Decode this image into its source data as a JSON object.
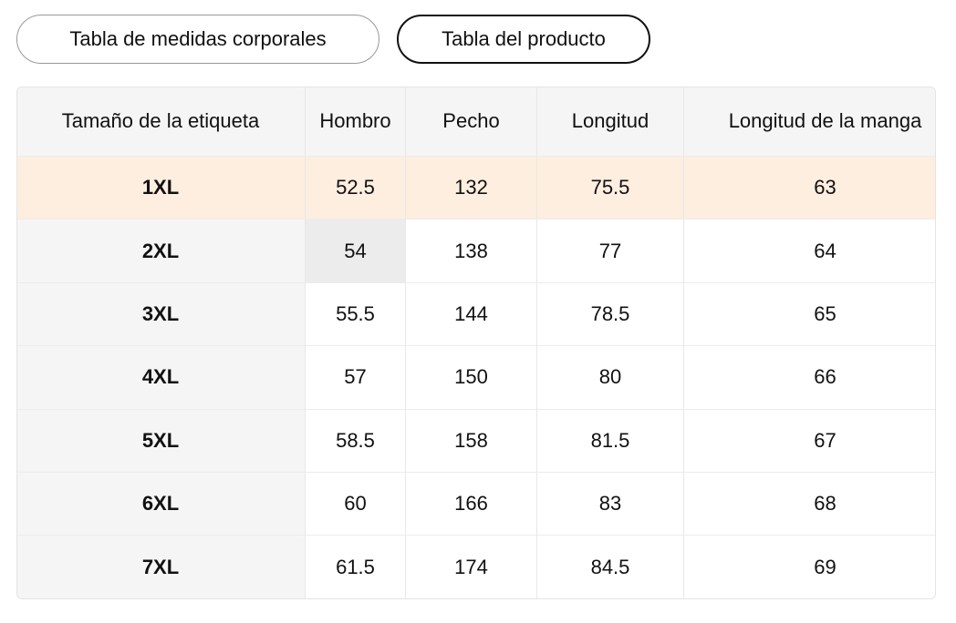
{
  "tabs": [
    "Tabla de medidas corporales",
    "Tabla del producto"
  ],
  "active_tab": 1,
  "table": {
    "headers": [
      "Tamaño de la etiqueta",
      "Hombro",
      "Pecho",
      "Longitud",
      "Longitud de la manga"
    ],
    "rows": [
      [
        "1XL",
        "52.5",
        "132",
        "75.5",
        "63"
      ],
      [
        "2XL",
        "54",
        "138",
        "77",
        "64"
      ],
      [
        "3XL",
        "55.5",
        "144",
        "78.5",
        "65"
      ],
      [
        "4XL",
        "57",
        "150",
        "80",
        "66"
      ],
      [
        "5XL",
        "58.5",
        "158",
        "81.5",
        "67"
      ],
      [
        "6XL",
        "60",
        "166",
        "83",
        "68"
      ],
      [
        "7XL",
        "61.5",
        "174",
        "84.5",
        "69"
      ]
    ]
  }
}
